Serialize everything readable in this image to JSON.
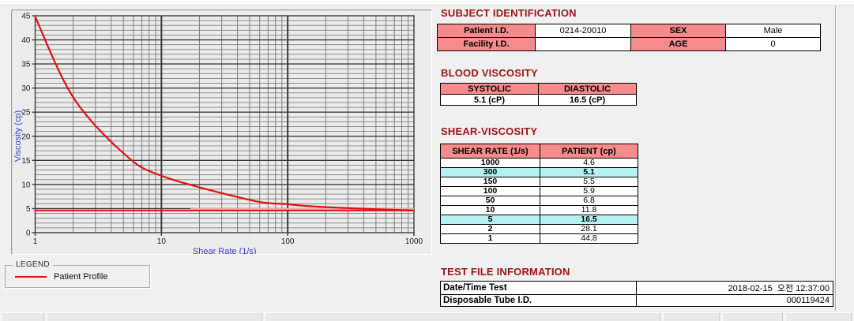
{
  "colors": {
    "accent_pink": "#F58B8B",
    "highlight_cyan": "#B5F1F1",
    "title_red": "#9B1318",
    "curve_red": "#E01010",
    "axis_blue": "#3A3ACC",
    "grid_minor": "#8c8c8c",
    "grid_major": "#3a3a3a",
    "plot_bg": "#ebebeb",
    "hline_pale": "#F2ACAC"
  },
  "chart_data": {
    "type": "line",
    "title": "",
    "xlabel": "Shear Rate (1/s)",
    "ylabel": "Viscosity (cp)",
    "x_scale": "log",
    "xlim": [
      1,
      1000
    ],
    "ylim": [
      0,
      45
    ],
    "x_major_ticks": [
      1,
      10,
      100,
      1000
    ],
    "y_major_ticks": [
      0,
      5,
      10,
      15,
      20,
      25,
      30,
      35,
      40,
      45
    ],
    "y_minor_step": 1,
    "grid": true,
    "legend_position": "bottom-left-outside",
    "series": [
      {
        "name": "Patient Profile",
        "color": "#E01010",
        "x": [
          1,
          2,
          5,
          10,
          50,
          100,
          150,
          300,
          1000
        ],
        "y": [
          44.8,
          28.1,
          16.5,
          11.8,
          6.8,
          5.9,
          5.5,
          5.1,
          4.6
        ]
      }
    ],
    "reference_line": {
      "y": 4.6,
      "color": "#E01010"
    }
  },
  "legend": {
    "title": "LEGEND",
    "entries": [
      {
        "label": "Patient Profile",
        "color": "#E01010"
      }
    ]
  },
  "sections": {
    "subject": {
      "title": "SUBJECT IDENTIFICATION",
      "rows": [
        {
          "label1": "Patient I.D.",
          "value1": "0214-20010",
          "label2": "SEX",
          "value2": "Male"
        },
        {
          "label1": "Facility I.D.",
          "value1": "",
          "label2": "AGE",
          "value2": "0"
        }
      ]
    },
    "blood": {
      "title": "BLOOD VISCOSITY",
      "headers": [
        "SYSTOLIC",
        "DIASTOLIC"
      ],
      "values": [
        "5.1 (cP)",
        "16.5 (cP)"
      ]
    },
    "shear": {
      "title": "SHEAR-VISCOSITY",
      "headers": [
        "SHEAR RATE (1/s)",
        "PATIENT (cp)"
      ],
      "rows": [
        {
          "rate": "1000",
          "value": "4.6",
          "highlight": false
        },
        {
          "rate": "300",
          "value": "5.1",
          "highlight": true
        },
        {
          "rate": "150",
          "value": "5.5",
          "highlight": false
        },
        {
          "rate": "100",
          "value": "5.9",
          "highlight": false
        },
        {
          "rate": "50",
          "value": "6.8",
          "highlight": false
        },
        {
          "rate": "10",
          "value": "11.8",
          "highlight": false
        },
        {
          "rate": "5",
          "value": "16.5",
          "highlight": true
        },
        {
          "rate": "2",
          "value": "28.1",
          "highlight": false
        },
        {
          "rate": "1",
          "value": "44.8",
          "highlight": false
        }
      ]
    },
    "test": {
      "title": "TEST FILE INFORMATION",
      "rows": [
        {
          "label": "Date/Time Test",
          "value": "2018-02-15  오전 12:37:00"
        },
        {
          "label": "Disposable Tube I.D.",
          "value": "000119424"
        }
      ]
    }
  }
}
